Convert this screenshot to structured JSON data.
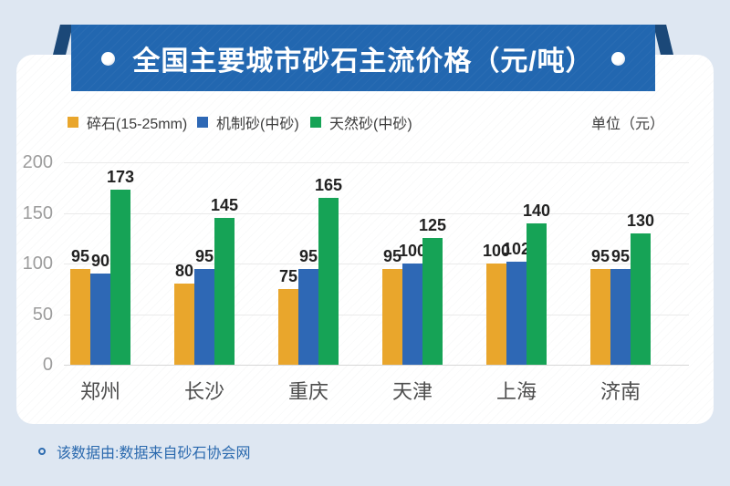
{
  "banner": {
    "title": "全国主要城市砂石主流价格（元/吨）",
    "background_color": "#2267b0",
    "fold_color": "#1b4878"
  },
  "legend": {
    "items": [
      {
        "label": "碎石(15-25mm)",
        "color": "#e9a62c"
      },
      {
        "label": "机制砂(中砂)",
        "color": "#2e68b5"
      },
      {
        "label": "天然砂(中砂)",
        "color": "#16a356"
      }
    ],
    "unit_label": "单位（元）"
  },
  "chart_data": {
    "type": "bar",
    "categories": [
      "郑州",
      "长沙",
      "重庆",
      "天津",
      "上海",
      "济南"
    ],
    "series": [
      {
        "name": "碎石(15-25mm)",
        "color": "#e9a62c",
        "values": [
          95,
          80,
          75,
          95,
          100,
          95
        ]
      },
      {
        "name": "机制砂(中砂)",
        "color": "#2e68b5",
        "values": [
          90,
          95,
          95,
          100,
          102,
          95
        ]
      },
      {
        "name": "天然砂(中砂)",
        "color": "#16a356",
        "values": [
          173,
          145,
          165,
          125,
          140,
          130
        ]
      }
    ],
    "title": "全国主要城市砂石主流价格（元/吨）",
    "xlabel": "",
    "ylabel": "",
    "ylim": [
      0,
      200
    ],
    "yticks": [
      0,
      50,
      100,
      150,
      200
    ],
    "grid": true,
    "legend_position": "top",
    "value_labels": true
  },
  "footer": {
    "source_text": "该数据由:数据来自砂石协会网"
  }
}
